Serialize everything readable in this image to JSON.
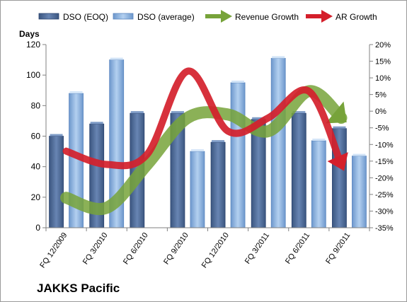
{
  "company": "JAKKS Pacific",
  "chart_data": {
    "type": "bar",
    "categories": [
      "FQ 12/2009",
      "FQ 3/2010",
      "FQ 6/2010",
      "FQ 9/2010",
      "FQ 12/2010",
      "FQ 3/2011",
      "FQ 6/2011",
      "FQ 9/2011"
    ],
    "category_groups": [
      [
        "FQ 12/2009",
        "FQ 3/2010"
      ],
      [
        "FQ 3/2010",
        "FQ 6/2010"
      ],
      [
        "FQ 6/2010",
        "FQ 9/2010"
      ],
      [
        "FQ 9/2010",
        "FQ 12/2010"
      ],
      [
        "FQ 12/2010",
        "FQ 3/2011"
      ],
      [
        "FQ 3/2011",
        "FQ 6/2011"
      ],
      [
        "FQ 6/2011",
        "FQ 9/2011"
      ],
      [
        "FQ 9/2011",
        ""
      ]
    ],
    "ylabel": "Days",
    "ylim": [
      0,
      120
    ],
    "yticks": [
      0,
      20,
      40,
      60,
      80,
      100,
      120
    ],
    "y2lim": [
      -35,
      20
    ],
    "y2ticks": [
      "20%",
      "15%",
      "10%",
      "5%",
      "0%",
      "-5%",
      "-10%",
      "-15%",
      "-20%",
      "-25%",
      "-30%",
      "-35%"
    ],
    "y2tick_values": [
      20,
      15,
      10,
      5,
      0,
      -5,
      -10,
      -15,
      -20,
      -25,
      -30,
      -35
    ],
    "legend_position": "top",
    "grid": false,
    "bar_series": [
      {
        "name": "DSO (EOQ)",
        "values": [
          60,
          68,
          75,
          75,
          56,
          71,
          75,
          65
        ],
        "color": "#4f6d99"
      },
      {
        "name": "DSO (average)",
        "values": [
          88,
          110,
          0,
          50,
          95,
          111,
          57,
          47
        ],
        "color": "#8db4e2"
      }
    ],
    "line_series": [
      {
        "name": "Revenue Growth",
        "axis": "secondary",
        "color": "#77a33a",
        "points": [
          [
            0.5,
            -26
          ],
          [
            1.5,
            -29
          ],
          [
            2.5,
            -16
          ],
          [
            3.5,
            -2
          ],
          [
            4.5,
            -1
          ],
          [
            5.5,
            -6
          ],
          [
            6.5,
            6
          ],
          [
            7.3,
            -2
          ]
        ]
      },
      {
        "name": "AR Growth",
        "axis": "secondary",
        "color": "#d41f2b",
        "points": [
          [
            0.5,
            -12
          ],
          [
            1.5,
            -16
          ],
          [
            2.5,
            -13
          ],
          [
            3.5,
            12
          ],
          [
            4.5,
            -6
          ],
          [
            5.5,
            -2
          ],
          [
            6.5,
            6
          ],
          [
            7.3,
            -16
          ]
        ]
      }
    ]
  }
}
